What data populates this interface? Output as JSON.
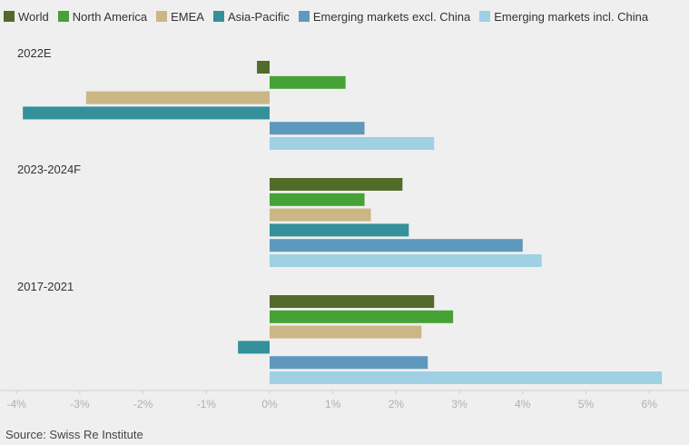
{
  "chart_data": {
    "type": "bar",
    "orientation": "horizontal",
    "groups": [
      "2022E",
      "2023-2024F",
      "2017-2021"
    ],
    "series": [
      {
        "name": "World",
        "color": "#536b2a",
        "values": [
          -0.2,
          2.1,
          2.6
        ]
      },
      {
        "name": "North America",
        "color": "#46a235",
        "values": [
          1.2,
          1.5,
          2.9
        ]
      },
      {
        "name": "EMEA",
        "color": "#cbb686",
        "values": [
          -2.9,
          1.6,
          2.4
        ]
      },
      {
        "name": "Asia-Pacific",
        "color": "#34909a",
        "values": [
          -3.9,
          2.2,
          -0.5
        ]
      },
      {
        "name": "Emerging markets excl. China",
        "color": "#5e99bd",
        "values": [
          1.5,
          4.0,
          2.5
        ]
      },
      {
        "name": "Emerging markets incl. China",
        "color": "#9fd0e3",
        "values": [
          2.6,
          4.3,
          6.2
        ]
      }
    ],
    "xlim": [
      -4,
      6.5
    ],
    "xticks": [
      "-4%",
      "-3%",
      "-2%",
      "-1%",
      "0%",
      "1%",
      "2%",
      "3%",
      "4%",
      "5%",
      "6%"
    ],
    "legend_position": "top",
    "grid": false
  },
  "source": "Source: Swiss Re Institute"
}
